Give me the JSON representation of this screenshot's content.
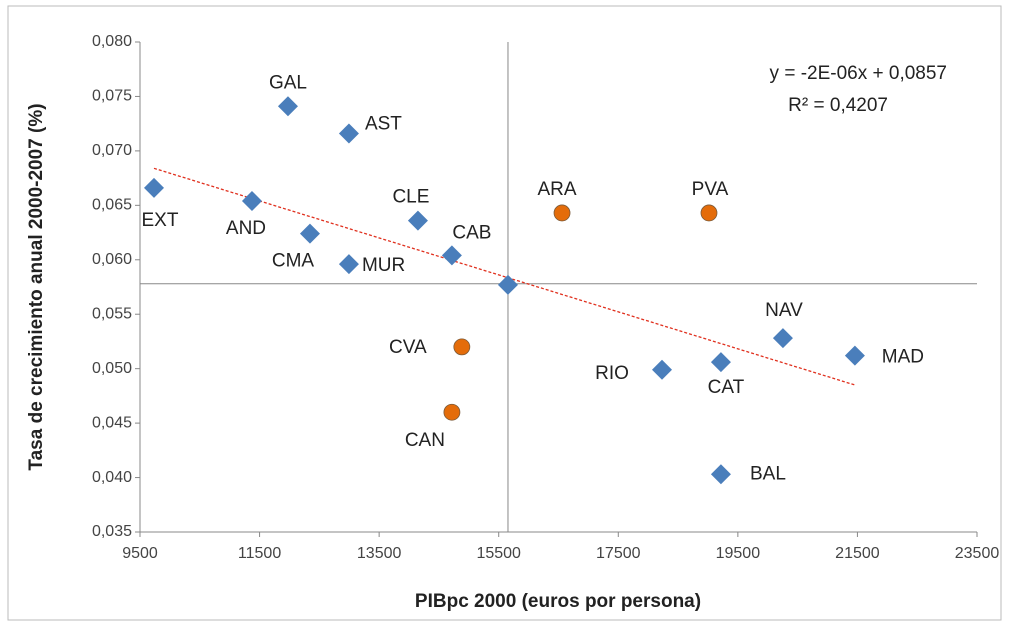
{
  "chart_data": {
    "type": "scatter",
    "xlabel": "PIBpc 2000 (euros por persona)",
    "ylabel": "Tasa de crecimiento anual 2000-2007 (%)",
    "xlim": [
      9500,
      23500
    ],
    "xticks": [
      9500,
      11500,
      13500,
      15500,
      17500,
      19500,
      21500,
      23500
    ],
    "ylim": [
      0.035,
      0.08
    ],
    "yticks": [
      {
        "value": 0.035,
        "label": "0,035"
      },
      {
        "value": 0.04,
        "label": "0,040"
      },
      {
        "value": 0.045,
        "label": "0,045"
      },
      {
        "value": 0.05,
        "label": "0,050"
      },
      {
        "value": 0.055,
        "label": "0,055"
      },
      {
        "value": 0.06,
        "label": "0,060"
      },
      {
        "value": 0.065,
        "label": "0,065"
      },
      {
        "value": 0.07,
        "label": "0,070"
      },
      {
        "value": 0.075,
        "label": "0,075"
      },
      {
        "value": 0.08,
        "label": "0,080"
      }
    ],
    "xref": 15655,
    "yref": 0.0578,
    "series": [
      {
        "color": "#4a7ebb",
        "marker": "diamond",
        "labels": [
          "EXT",
          "AND",
          "GAL",
          "CMA",
          "AST",
          "MUR",
          "CLE",
          "CAB",
          null,
          "RIO",
          "CAT",
          "NAV",
          "MAD",
          "BAL"
        ],
        "x": [
          9734,
          11373,
          11975,
          12343,
          12995,
          12995,
          14149,
          14717,
          15655,
          18231,
          19217,
          20254,
          21458,
          19217
        ],
        "values": [
          0.0666,
          0.0654,
          0.0741,
          0.0624,
          0.0716,
          0.0596,
          0.0636,
          0.0604,
          0.0577,
          0.0499,
          0.0506,
          0.0528,
          0.0512,
          0.0403
        ]
      },
      {
        "color": "#e46c0a",
        "marker": "circle",
        "labels": [
          "ARA",
          "PVA",
          "CVA",
          "CAN"
        ],
        "x": [
          16559,
          19017,
          14883,
          14717
        ],
        "values": [
          0.0643,
          0.0643,
          0.052,
          0.046
        ]
      }
    ],
    "trendline": {
      "color": "#e0301e",
      "x": [
        9734,
        21458
      ],
      "y": [
        0.0684,
        0.0485
      ]
    },
    "annotations": [
      "y = -2E-06x + 0,0857",
      "R² = 0,4207"
    ]
  }
}
